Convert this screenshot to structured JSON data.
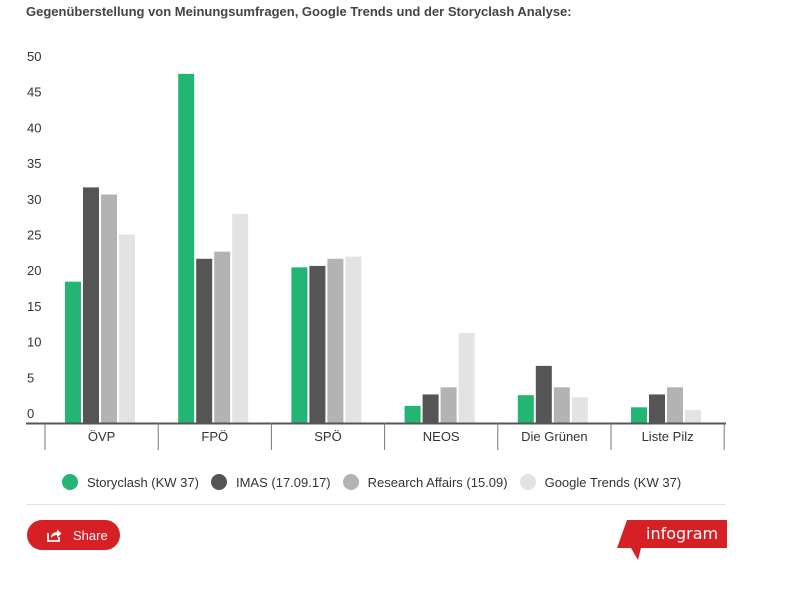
{
  "title": "Gegenüberstellung von Meinungsumfragen, Google Trends und der Storyclash Analyse:",
  "colors": {
    "storyclash": "#22b573",
    "imas": "#555555",
    "research": "#b3b3b3",
    "google": "#e3e3e3",
    "share": "#d71f26"
  },
  "share_label": "Share",
  "brand_label": "infogram",
  "chart_data": {
    "type": "bar",
    "title": "Gegenüberstellung von Meinungsumfragen, Google Trends und der Storyclash Analyse:",
    "categories": [
      "ÖVP",
      "FPÖ",
      "SPÖ",
      "NEOS",
      "Die Grünen",
      "Liste Pilz"
    ],
    "yticks": [
      "0",
      "5",
      "10",
      "15",
      "20",
      "25",
      "30",
      "35",
      "40",
      "45",
      "50"
    ],
    "ylim": [
      0,
      50
    ],
    "grid": false,
    "legend_position": "bottom",
    "series": [
      {
        "name": "Storyclash (KW 37)",
        "color": "#22b573",
        "values": [
          19.8,
          48.9,
          21.8,
          2.4,
          3.9,
          2.2
        ]
      },
      {
        "name": "IMAS (17.09.17)",
        "color": "#555555",
        "values": [
          33,
          23,
          22,
          4,
          8,
          4
        ]
      },
      {
        "name": "Research Affairs (15.09)",
        "color": "#b3b3b3",
        "values": [
          32,
          24,
          23,
          5,
          5,
          5
        ]
      },
      {
        "name": "Google Trends (KW 37)",
        "color": "#e3e3e3",
        "values": [
          26.4,
          29.3,
          23.3,
          12.6,
          3.6,
          1.8
        ]
      }
    ]
  }
}
